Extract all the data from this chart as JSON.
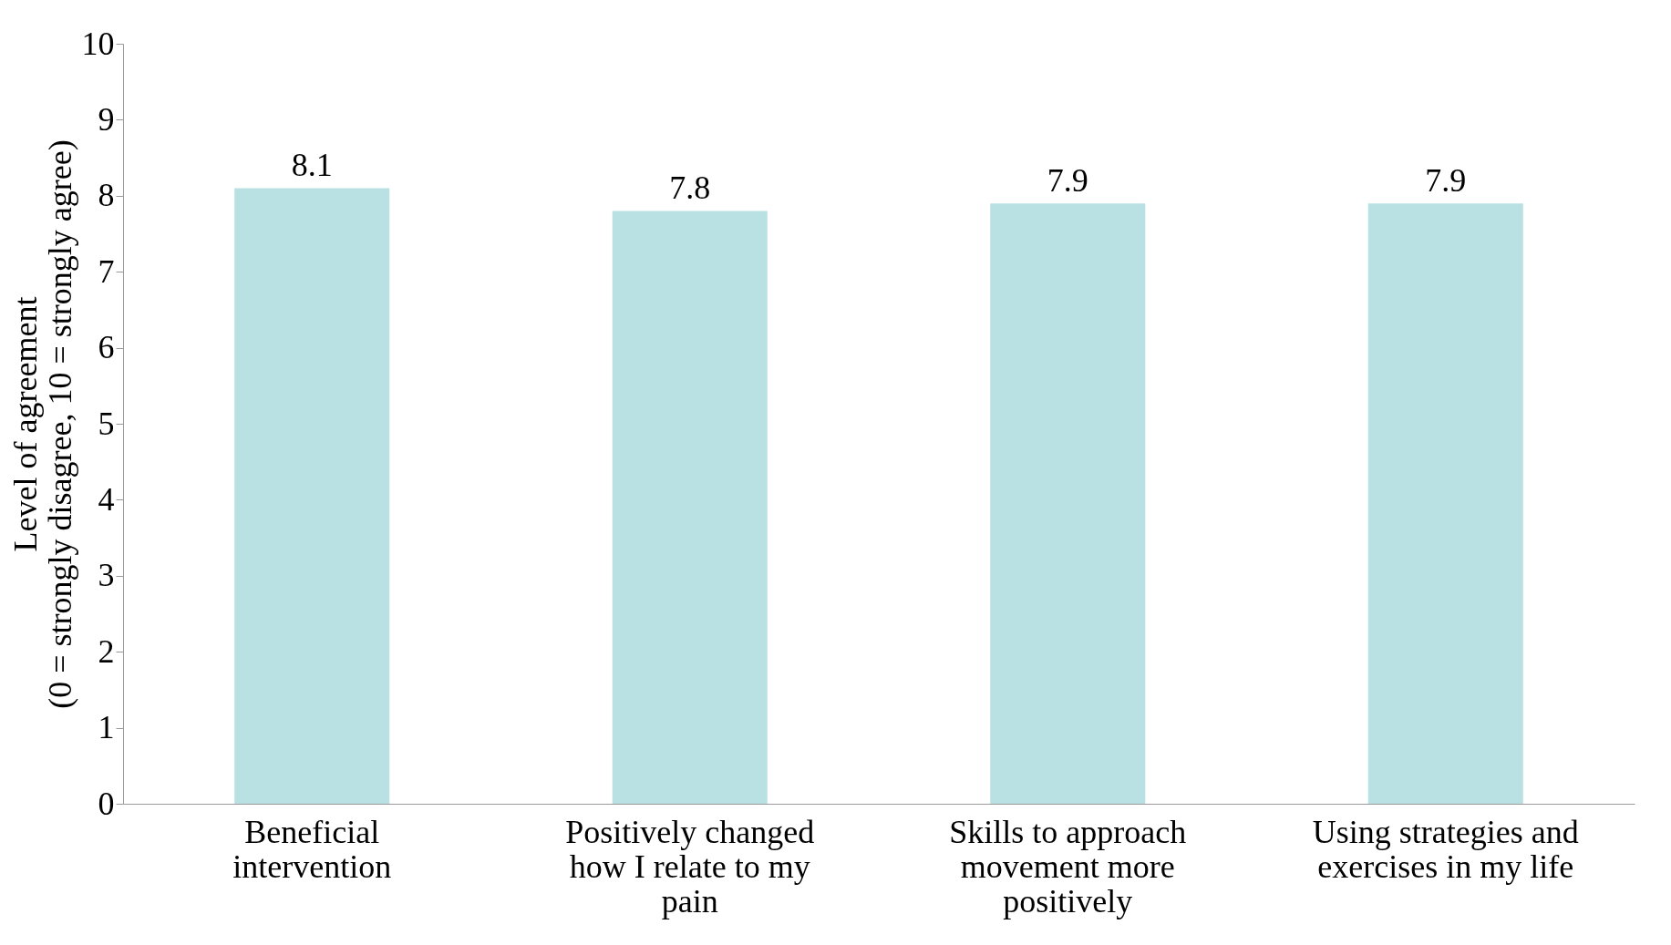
{
  "chart_data": {
    "type": "bar",
    "categories": [
      "Beneficial intervention",
      "Positively changed how I relate to my pain",
      "Skills to approach movement more positively",
      "Using strategies and exercises in my life"
    ],
    "values": [
      8.1,
      7.8,
      7.9,
      7.9
    ],
    "color": "#b9e0e3",
    "ylabel": "Level of agreement\n(0 = strongly disagree, 10 = strongly agree)",
    "ylim": [
      0,
      10
    ],
    "yticks": [
      0,
      1,
      2,
      3,
      4,
      5,
      6,
      7,
      8,
      9,
      10
    ],
    "grid": false,
    "data_labels": true
  }
}
